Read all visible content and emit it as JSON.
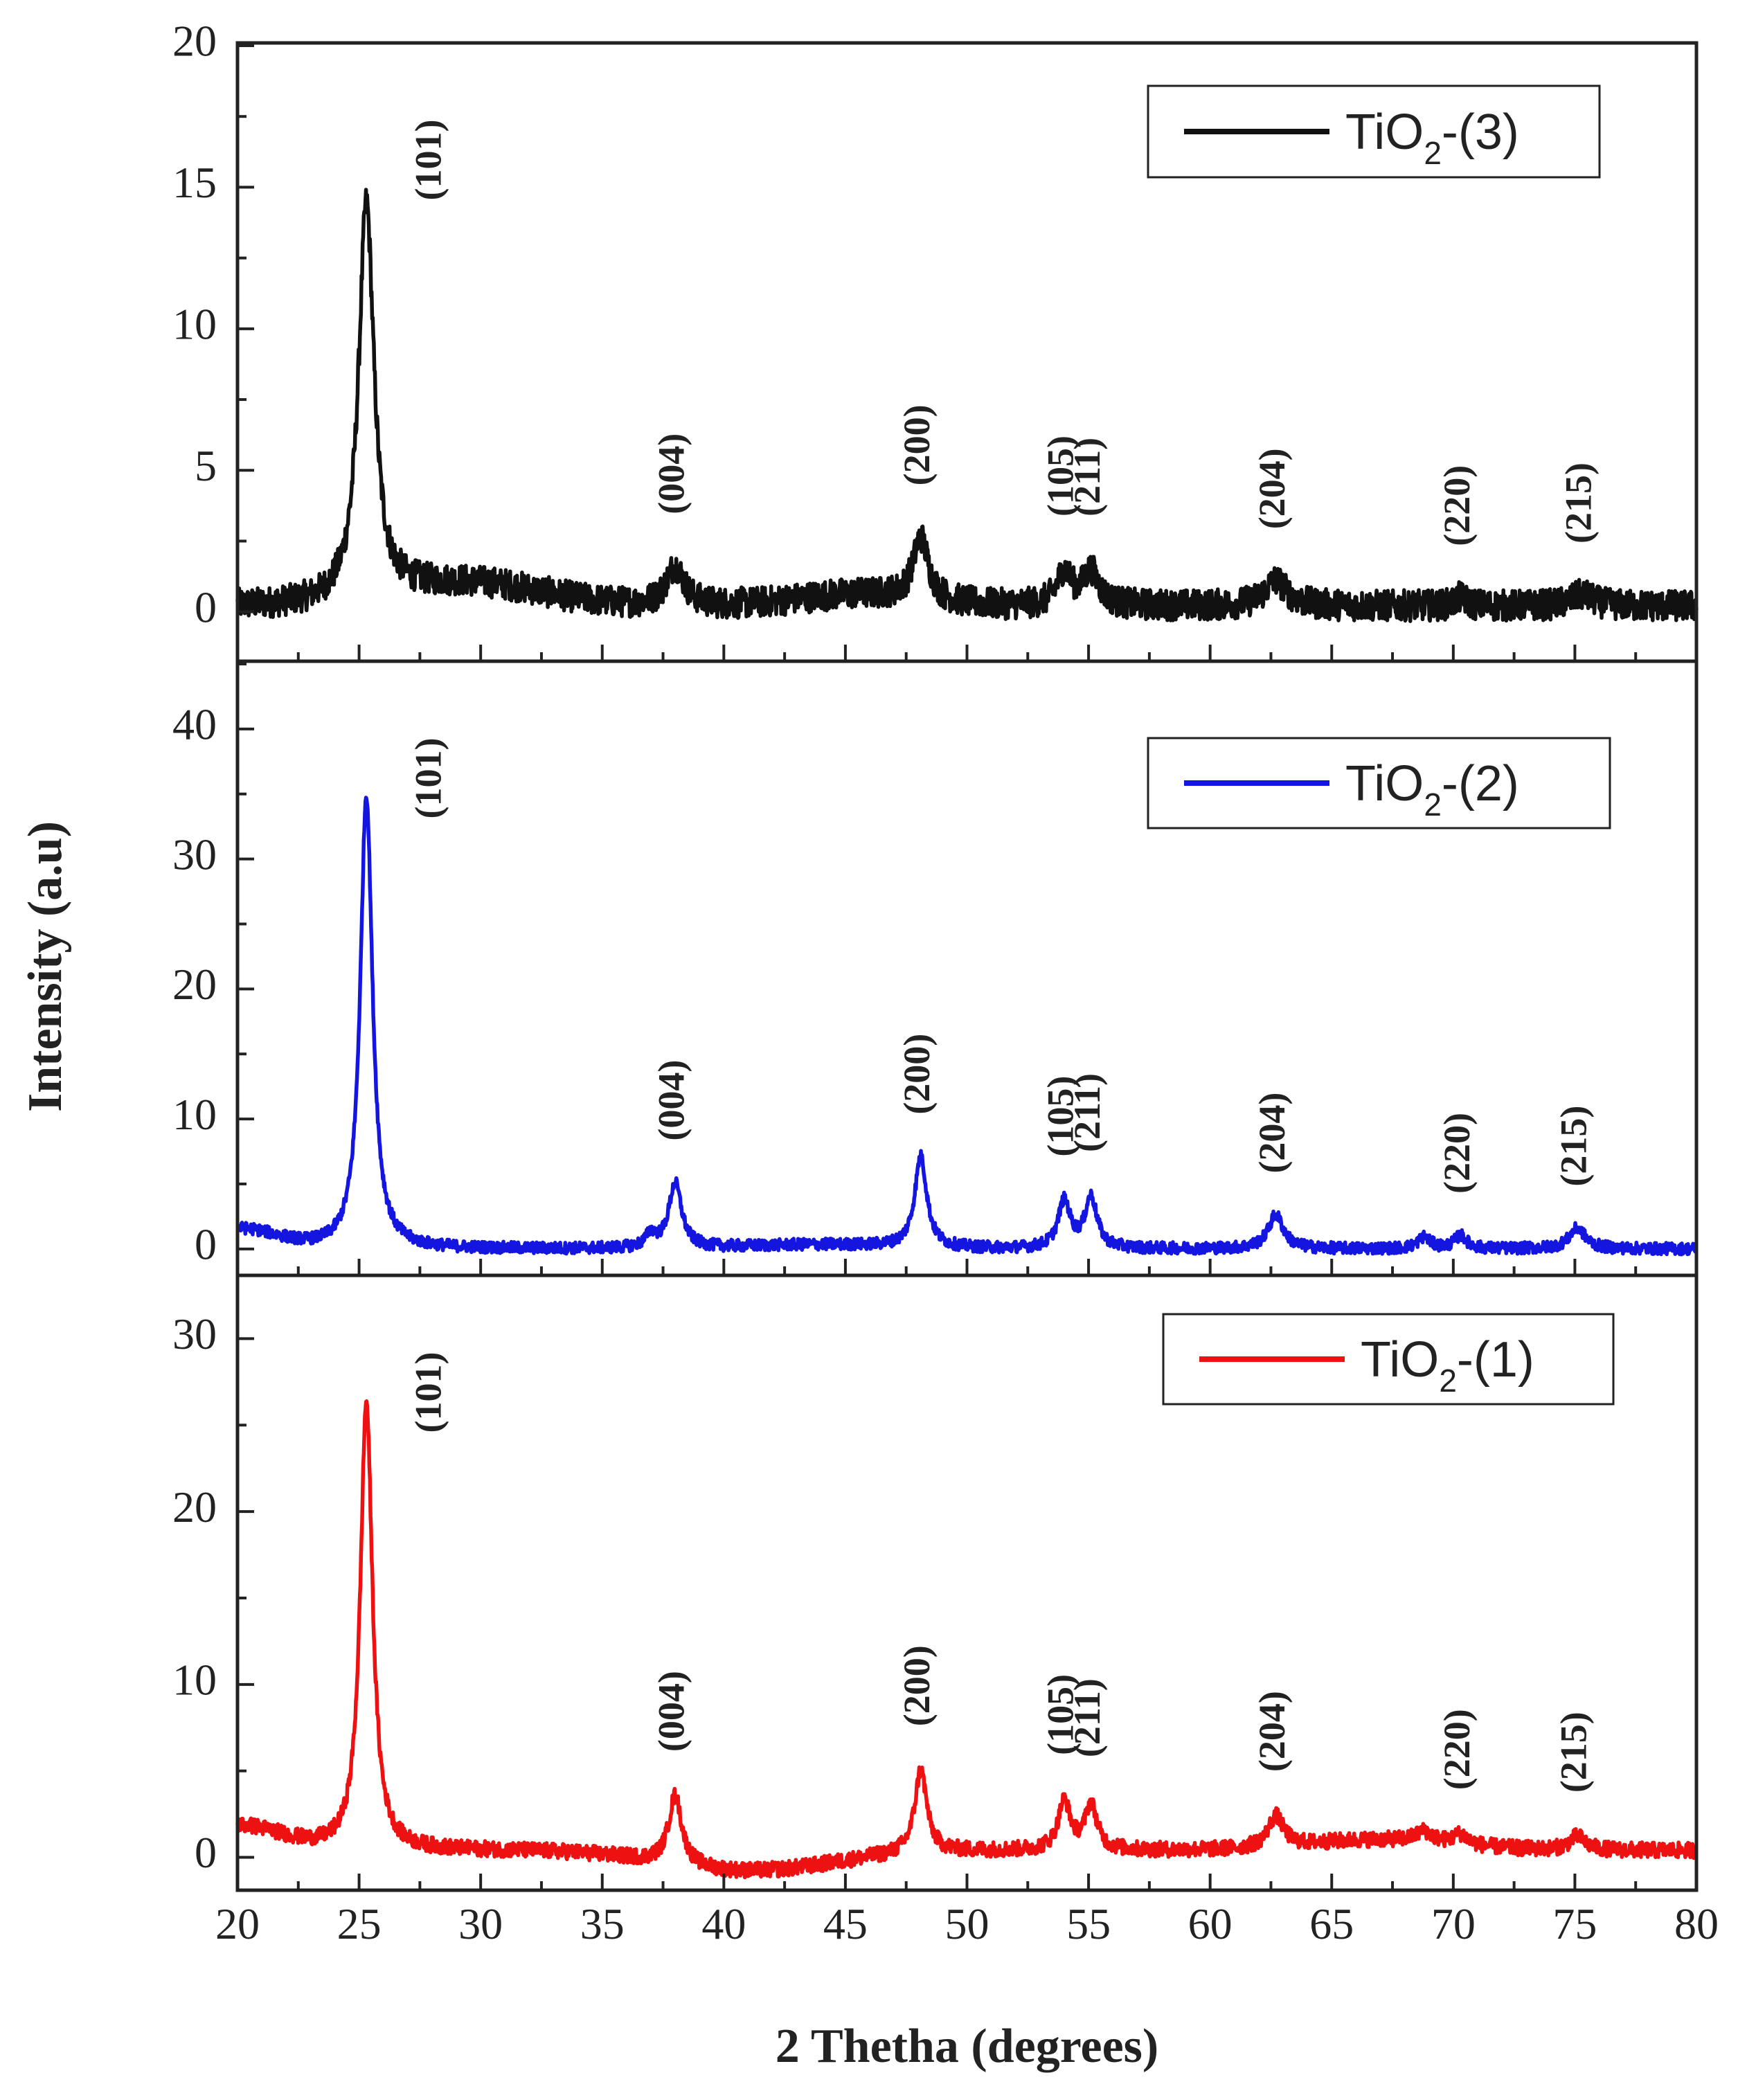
{
  "chart_data": {
    "type": "line",
    "xlabel": "2 Thetha (degrees)",
    "ylabel": "Intensity (a.u)",
    "xlim": [
      20,
      80
    ],
    "xticks": [
      20,
      25,
      30,
      35,
      40,
      45,
      50,
      55,
      60,
      65,
      70,
      75,
      80
    ],
    "grid": false,
    "legend_position": "top-right",
    "panels": [
      {
        "name": "TiO2-(3)",
        "legend": {
          "main": "TiO",
          "sub": "2",
          "suffix": "-(3)"
        },
        "color": "#111111",
        "ylim": [
          -1.5,
          20
        ],
        "yticks": [
          0,
          5,
          10,
          15,
          20
        ],
        "baseline": 0.2,
        "noise": 0.55,
        "peaks": [
          {
            "x": 25.3,
            "height": 14.0,
            "width": 0.38,
            "label": "(101)"
          },
          {
            "x": 38.0,
            "height": 1.4,
            "width": 0.45,
            "label": "(004)"
          },
          {
            "x": 48.1,
            "height": 2.2,
            "width": 0.38,
            "label": "(200)"
          },
          {
            "x": 54.0,
            "height": 1.2,
            "width": 0.35,
            "label": "(105)"
          },
          {
            "x": 55.1,
            "height": 1.2,
            "width": 0.4,
            "label": "(211)"
          },
          {
            "x": 62.7,
            "height": 0.9,
            "width": 0.55,
            "label": "(204)"
          },
          {
            "x": 70.3,
            "height": 0.3,
            "width": 0.3,
            "label": "(220)"
          },
          {
            "x": 75.3,
            "height": 0.4,
            "width": 0.55,
            "label": "(215)"
          }
        ],
        "humps": [
          {
            "x": 29.5,
            "height": 0.8,
            "width": 3.0
          },
          {
            "x": 45.5,
            "height": 0.4,
            "width": 2.5
          }
        ]
      },
      {
        "name": "TiO2-(2)",
        "legend": {
          "main": "TiO",
          "sub": "2",
          "suffix": "-(2)"
        },
        "color": "#1515e0",
        "ylim": [
          -1.5,
          45
        ],
        "yticks": [
          0,
          10,
          20,
          30,
          40
        ],
        "baseline": 0.0,
        "noise": 0.45,
        "peaks": [
          {
            "x": 25.3,
            "height": 35.0,
            "width": 0.3,
            "label": "(101)"
          },
          {
            "x": 37.0,
            "height": 1.0,
            "width": 0.25,
            "label": ""
          },
          {
            "x": 38.0,
            "height": 5.0,
            "width": 0.32,
            "label": "(004)"
          },
          {
            "x": 48.1,
            "height": 7.0,
            "width": 0.3,
            "label": "(200)"
          },
          {
            "x": 54.0,
            "height": 3.6,
            "width": 0.3,
            "label": "(105)"
          },
          {
            "x": 55.1,
            "height": 3.9,
            "width": 0.3,
            "label": "(211)"
          },
          {
            "x": 62.7,
            "height": 2.6,
            "width": 0.38,
            "label": "(204)"
          },
          {
            "x": 68.8,
            "height": 0.9,
            "width": 0.3,
            "label": ""
          },
          {
            "x": 70.3,
            "height": 1.0,
            "width": 0.3,
            "label": "(220)"
          },
          {
            "x": 75.1,
            "height": 1.6,
            "width": 0.4,
            "label": "(215)"
          }
        ],
        "humps": [
          {
            "x": 20.0,
            "height": 1.5,
            "width": 1.6
          },
          {
            "x": 44.0,
            "height": 0.3,
            "width": 3.0
          }
        ]
      },
      {
        "name": "TiO2-(1)",
        "legend": {
          "main": "TiO",
          "sub": "2",
          "suffix": "-(1)"
        },
        "color": "#ee1111",
        "ylim": [
          -1.5,
          33.5
        ],
        "yticks": [
          0,
          10,
          20,
          30
        ],
        "baseline": 0.4,
        "noise": 0.45,
        "peaks": [
          {
            "x": 25.3,
            "height": 26.0,
            "width": 0.3,
            "label": "(101)"
          },
          {
            "x": 38.0,
            "height": 4.0,
            "width": 0.33,
            "label": "(004)"
          },
          {
            "x": 48.1,
            "height": 4.8,
            "width": 0.3,
            "label": "(200)"
          },
          {
            "x": 54.0,
            "height": 2.8,
            "width": 0.3,
            "label": "(105)"
          },
          {
            "x": 55.1,
            "height": 2.6,
            "width": 0.3,
            "label": "(211)"
          },
          {
            "x": 62.7,
            "height": 1.8,
            "width": 0.38,
            "label": "(204)"
          },
          {
            "x": 68.8,
            "height": 0.6,
            "width": 0.4,
            "label": ""
          },
          {
            "x": 70.3,
            "height": 0.6,
            "width": 0.35,
            "label": "(220)"
          },
          {
            "x": 75.1,
            "height": 0.8,
            "width": 0.4,
            "label": "(215)"
          }
        ],
        "humps": [
          {
            "x": 20.0,
            "height": 1.4,
            "width": 1.8
          },
          {
            "x": 41.0,
            "height": -1.2,
            "width": 3.5
          },
          {
            "x": 67.0,
            "height": 0.6,
            "width": 3.0
          }
        ]
      }
    ]
  }
}
